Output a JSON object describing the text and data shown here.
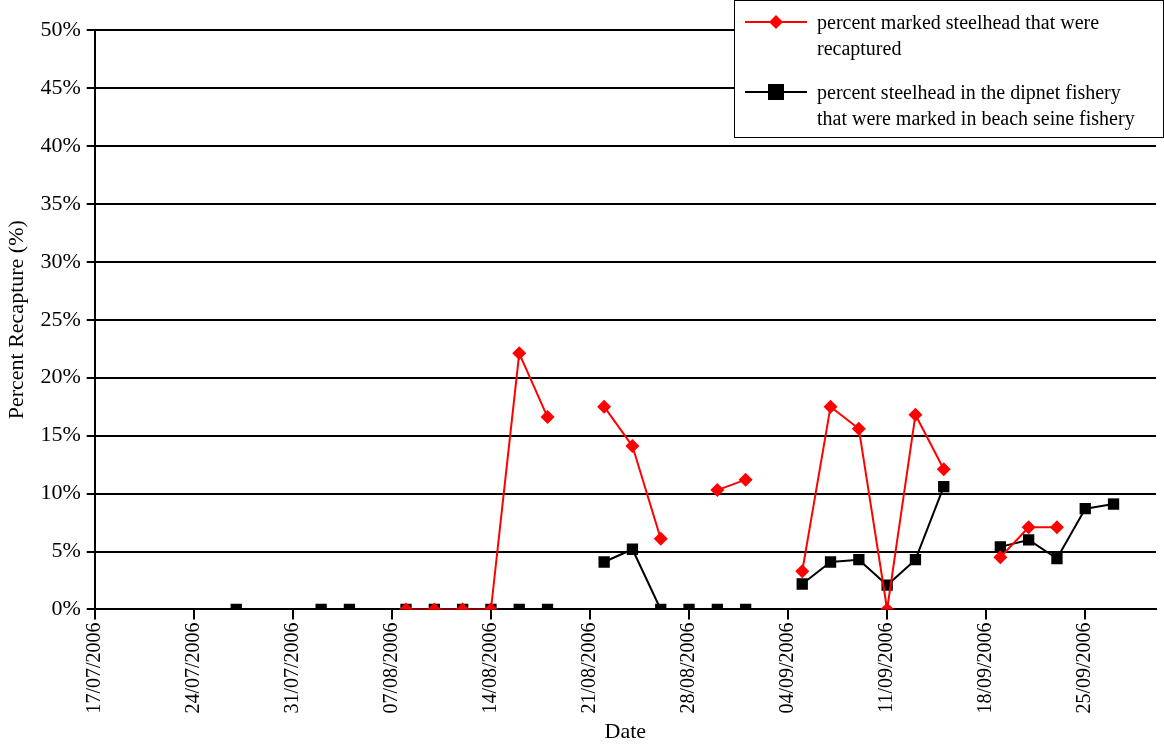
{
  "chart_data": {
    "type": "line",
    "xlabel": "Date",
    "ylabel": "Percent Recapture (%)",
    "xlim": [
      "2006-07-17",
      "2006-09-30"
    ],
    "xticks": [
      {
        "value": "2006-07-17",
        "label": "17/07/2006"
      },
      {
        "value": "2006-07-24",
        "label": "24/07/2006"
      },
      {
        "value": "2006-07-31",
        "label": "31/07/2006"
      },
      {
        "value": "2006-08-07",
        "label": "07/08/2006"
      },
      {
        "value": "2006-08-14",
        "label": "14/08/2006"
      },
      {
        "value": "2006-08-21",
        "label": "21/08/2006"
      },
      {
        "value": "2006-08-28",
        "label": "28/08/2006"
      },
      {
        "value": "2006-09-04",
        "label": "04/09/2006"
      },
      {
        "value": "2006-09-11",
        "label": "11/09/2006"
      },
      {
        "value": "2006-09-18",
        "label": "18/09/2006"
      },
      {
        "value": "2006-09-25",
        "label": "25/09/2006"
      }
    ],
    "ylim": [
      0,
      50
    ],
    "yticks": [
      {
        "value": 0,
        "label": "0%"
      },
      {
        "value": 5,
        "label": "5%"
      },
      {
        "value": 10,
        "label": "10%"
      },
      {
        "value": 15,
        "label": "15%"
      },
      {
        "value": 20,
        "label": "20%"
      },
      {
        "value": 25,
        "label": "25%"
      },
      {
        "value": 30,
        "label": "30%"
      },
      {
        "value": 35,
        "label": "35%"
      },
      {
        "value": 40,
        "label": "40%"
      },
      {
        "value": 45,
        "label": "45%"
      },
      {
        "value": 50,
        "label": "50%"
      }
    ],
    "grid": "y",
    "legend": "top right",
    "series": [
      {
        "name": "percent marked steelhead that were recaptured",
        "color": "#ff0000",
        "marker": "diamond",
        "x": [
          "2006-08-08",
          "2006-08-10",
          "2006-08-12",
          "2006-08-14",
          "2006-08-16",
          "2006-08-18",
          "2006-08-20",
          "2006-08-22",
          "2006-08-24",
          "2006-08-26",
          "2006-08-28",
          "2006-08-30",
          "2006-09-01",
          "2006-09-03",
          "2006-09-05",
          "2006-09-07",
          "2006-09-09",
          "2006-09-11",
          "2006-09-13",
          "2006-09-15",
          "2006-09-17",
          "2006-09-19",
          "2006-09-21",
          "2006-09-23"
        ],
        "values": [
          0,
          0,
          0,
          0,
          22.1,
          16.6,
          null,
          17.5,
          14.1,
          6.1,
          null,
          10.3,
          11.2,
          null,
          3.3,
          17.5,
          15.6,
          0,
          16.8,
          12.1,
          null,
          4.5,
          7.1,
          7.1
        ]
      },
      {
        "name": "percent steelhead in the dipnet fishery that were marked in beach seine fishery",
        "color": "#000000",
        "marker": "square",
        "x": [
          "2006-07-27",
          "2006-07-30",
          "2006-08-02",
          "2006-08-04",
          "2006-08-06",
          "2006-08-08",
          "2006-08-10",
          "2006-08-12",
          "2006-08-14",
          "2006-08-16",
          "2006-08-18",
          "2006-08-20",
          "2006-08-22",
          "2006-08-24",
          "2006-08-26",
          "2006-08-28",
          "2006-08-30",
          "2006-09-01",
          "2006-09-03",
          "2006-09-05",
          "2006-09-07",
          "2006-09-09",
          "2006-09-11",
          "2006-09-13",
          "2006-09-15",
          "2006-09-17",
          "2006-09-19",
          "2006-09-21",
          "2006-09-23",
          "2006-09-25",
          "2006-09-27"
        ],
        "values": [
          0,
          null,
          0,
          0,
          null,
          0,
          0,
          0,
          0,
          0,
          0,
          null,
          4.1,
          5.2,
          0,
          0,
          0,
          0,
          null,
          2.2,
          4.1,
          4.3,
          2.1,
          4.3,
          10.6,
          null,
          5.4,
          6.0,
          4.4,
          8.7,
          9.1
        ]
      }
    ]
  }
}
